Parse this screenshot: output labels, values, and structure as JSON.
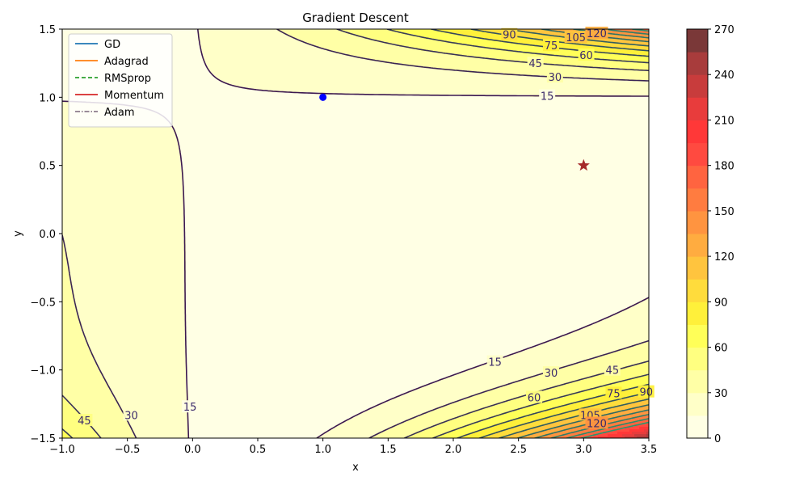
{
  "chart_data": {
    "type": "contour",
    "title": "Gradient Descent",
    "xlabel": "x",
    "ylabel": "y",
    "xlim": [
      -1.0,
      3.5
    ],
    "ylim": [
      -1.5,
      1.5
    ],
    "x_ticks": [
      "−1.0",
      "−0.5",
      "0.0",
      "0.5",
      "1.0",
      "1.5",
      "2.0",
      "2.5",
      "3.0",
      "3.5"
    ],
    "y_ticks": [
      "−1.5",
      "−1.0",
      "−0.5",
      "0.0",
      "0.5",
      "1.0",
      "1.5"
    ],
    "function": "beale",
    "contour_levels": [
      15,
      30,
      45,
      60,
      75,
      90,
      105,
      120,
      135,
      150,
      165,
      180
    ],
    "colorbar": {
      "min": 0,
      "max": 270,
      "step": 15,
      "ticks": [
        "0",
        "30",
        "60",
        "90",
        "120",
        "150",
        "180",
        "210",
        "240",
        "270"
      ],
      "colors": [
        "#ffffe4",
        "#ffffc8",
        "#ffffa6",
        "#ffff80",
        "#ffff58",
        "#fff03a",
        "#ffdc3c",
        "#ffc43e",
        "#ffac40",
        "#ff9440",
        "#ff7c40",
        "#ff6440",
        "#ff4a40",
        "#ff3838",
        "#e83c3c",
        "#c83c3c",
        "#a83c3c",
        "#7a3838"
      ]
    },
    "start_point": {
      "x": 1.0,
      "y": 1.0,
      "color": "#0000ff"
    },
    "minimum_point": {
      "x": 3.0,
      "y": 0.5,
      "color": "#a52a2a"
    },
    "legend": {
      "location": "upper-left",
      "entries": [
        {
          "name": "GD",
          "color": "#1f77b4",
          "style": "solid"
        },
        {
          "name": "Adagrad",
          "color": "#ff7f0e",
          "style": "solid"
        },
        {
          "name": "RMSprop",
          "color": "#2ca02c",
          "style": "dashed"
        },
        {
          "name": "Momentum",
          "color": "#d62728",
          "style": "solid"
        },
        {
          "name": "Adam",
          "color": "#8c7b8c",
          "style": "dashdot"
        }
      ]
    },
    "contour_labels": [
      {
        "level": "15",
        "x": 2.72,
        "y": 1.01
      },
      {
        "level": "30",
        "x": 2.78,
        "y": 1.15
      },
      {
        "level": "45",
        "x": 2.63,
        "y": 1.25
      },
      {
        "level": "60",
        "x": 3.02,
        "y": 1.31
      },
      {
        "level": "75",
        "x": 2.75,
        "y": 1.38
      },
      {
        "level": "90",
        "x": 2.43,
        "y": 1.46
      },
      {
        "level": "105",
        "x": 2.94,
        "y": 1.44
      },
      {
        "level": "120",
        "x": 3.1,
        "y": 1.47
      },
      {
        "level": "15",
        "x": 2.32,
        "y": -0.94
      },
      {
        "level": "30",
        "x": 2.75,
        "y": -1.02
      },
      {
        "level": "45",
        "x": 3.22,
        "y": -1.0
      },
      {
        "level": "60",
        "x": 2.62,
        "y": -1.2
      },
      {
        "level": "75",
        "x": 3.23,
        "y": -1.17
      },
      {
        "level": "90",
        "x": 3.48,
        "y": -1.16
      },
      {
        "level": "105",
        "x": 3.05,
        "y": -1.33
      },
      {
        "level": "120",
        "x": 3.1,
        "y": -1.39
      },
      {
        "level": "15",
        "x": -0.02,
        "y": -1.27
      },
      {
        "level": "30",
        "x": -0.47,
        "y": -1.33
      },
      {
        "level": "45",
        "x": -0.83,
        "y": -1.37
      }
    ]
  }
}
